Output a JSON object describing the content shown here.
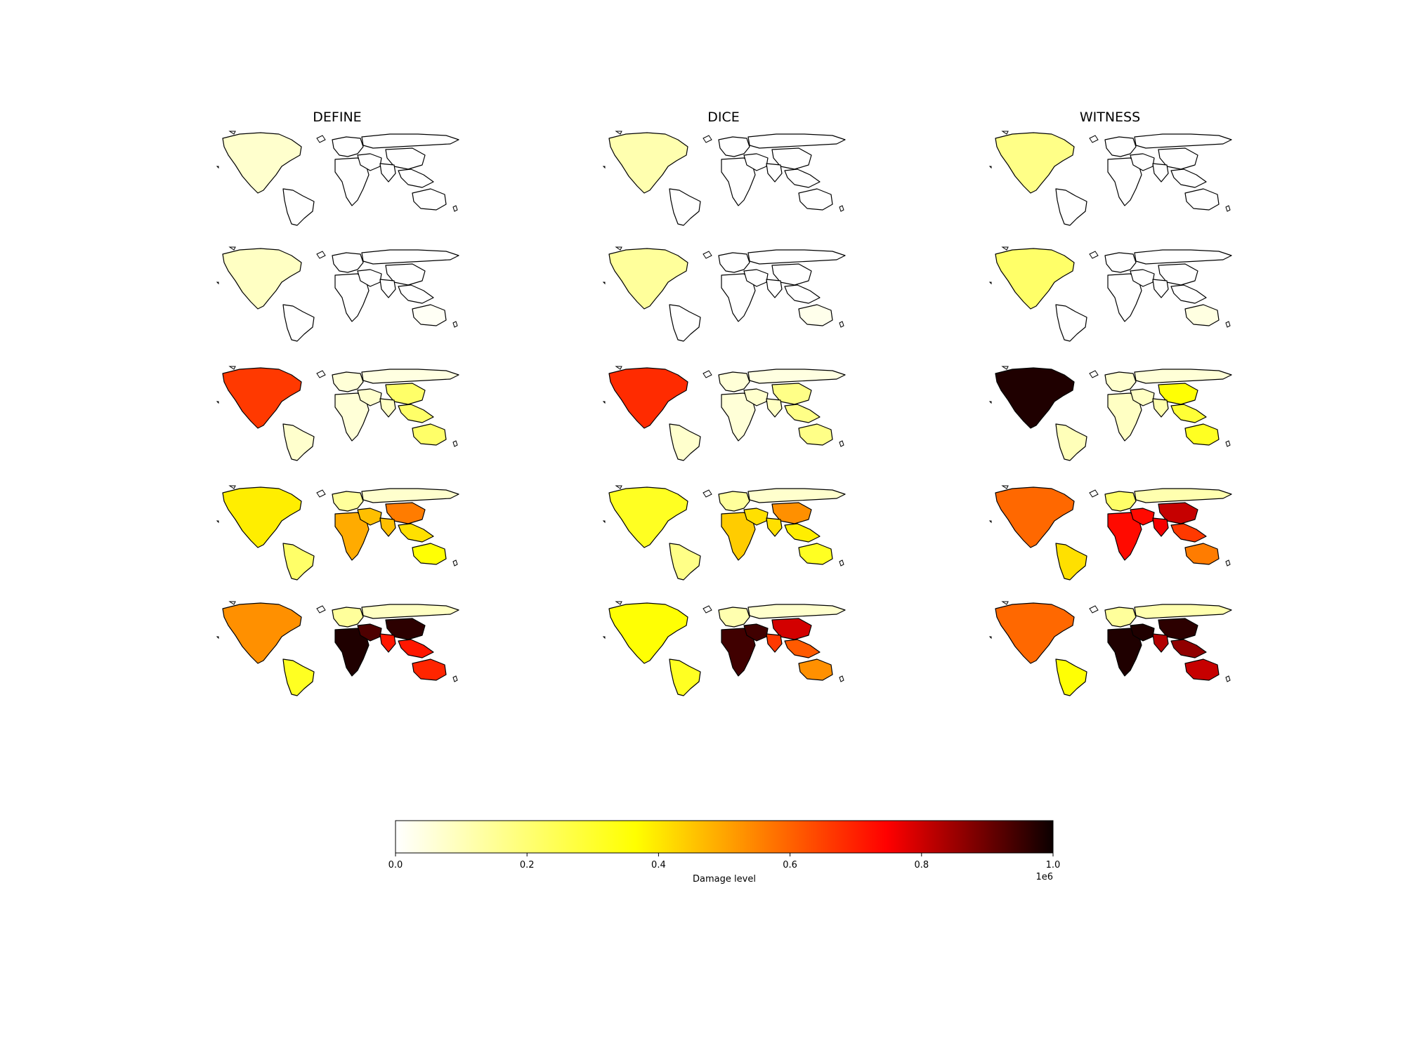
{
  "chart_data": {
    "type": "heatmap",
    "kind": "choropleth map grid",
    "columns": [
      "DEFINE",
      "DICE",
      "WITNESS"
    ],
    "row_count": 5,
    "colormap": "hot_r",
    "colorbar": {
      "label": "Damage level",
      "range": [
        0.0,
        1.0
      ],
      "ticks": [
        "0.0",
        "0.2",
        "0.4",
        "0.6",
        "0.8",
        "1.0"
      ],
      "offset_text": "1e6",
      "orientation": "horizontal",
      "placement": "bottom"
    },
    "regions": [
      "North America",
      "South America",
      "Europe",
      "Africa",
      "Russia",
      "Middle East",
      "China",
      "South Asia",
      "Southeast Asia",
      "Australia"
    ],
    "panels": [
      {
        "model": "DEFINE",
        "row": 1,
        "values": {
          "North America": 0.05,
          "South America": 0.0,
          "Europe": 0.0,
          "Africa": 0.0,
          "Russia": 0.0,
          "Middle East": 0.0,
          "China": 0.0,
          "South Asia": 0.0,
          "Southeast Asia": 0.0,
          "Australia": 0.0
        }
      },
      {
        "model": "DICE",
        "row": 1,
        "values": {
          "North America": 0.08,
          "South America": 0.0,
          "Europe": 0.0,
          "Africa": 0.0,
          "Russia": 0.0,
          "Middle East": 0.0,
          "China": 0.0,
          "South Asia": 0.0,
          "Southeast Asia": 0.0,
          "Australia": 0.0
        }
      },
      {
        "model": "WITNESS",
        "row": 1,
        "values": {
          "North America": 0.12,
          "South America": 0.0,
          "Europe": 0.0,
          "Africa": 0.0,
          "Russia": 0.0,
          "Middle East": 0.0,
          "China": 0.0,
          "South Asia": 0.0,
          "Southeast Asia": 0.0,
          "Australia": 0.0
        }
      },
      {
        "model": "DEFINE",
        "row": 2,
        "values": {
          "North America": 0.06,
          "South America": 0.0,
          "Europe": 0.0,
          "Africa": 0.0,
          "Russia": 0.0,
          "Middle East": 0.0,
          "China": 0.0,
          "South Asia": 0.0,
          "Southeast Asia": 0.0,
          "Australia": 0.01
        }
      },
      {
        "model": "DICE",
        "row": 2,
        "values": {
          "North America": 0.1,
          "South America": 0.0,
          "Europe": 0.0,
          "Africa": 0.0,
          "Russia": 0.0,
          "Middle East": 0.0,
          "China": 0.0,
          "South Asia": 0.0,
          "Southeast Asia": 0.0,
          "Australia": 0.02
        }
      },
      {
        "model": "WITNESS",
        "row": 2,
        "values": {
          "North America": 0.15,
          "South America": 0.0,
          "Europe": 0.0,
          "Africa": 0.0,
          "Russia": 0.0,
          "Middle East": 0.0,
          "China": 0.0,
          "South Asia": 0.0,
          "Southeast Asia": 0.0,
          "Australia": 0.03
        }
      },
      {
        "model": "DEFINE",
        "row": 3,
        "values": {
          "North America": 0.55,
          "South America": 0.05,
          "Europe": 0.04,
          "Africa": 0.04,
          "Russia": 0.03,
          "Middle East": 0.05,
          "China": 0.15,
          "South Asia": 0.06,
          "Southeast Asia": 0.15,
          "Australia": 0.15
        }
      },
      {
        "model": "DICE",
        "row": 3,
        "values": {
          "North America": 0.57,
          "South America": 0.05,
          "Europe": 0.04,
          "Africa": 0.04,
          "Russia": 0.03,
          "Middle East": 0.05,
          "China": 0.12,
          "South Asia": 0.06,
          "Southeast Asia": 0.12,
          "Australia": 0.12
        }
      },
      {
        "model": "WITNESS",
        "row": 3,
        "values": {
          "North America": 0.97,
          "South America": 0.07,
          "Europe": 0.05,
          "Africa": 0.06,
          "Russia": 0.04,
          "Middle East": 0.06,
          "China": 0.25,
          "South Asia": 0.08,
          "Southeast Asia": 0.2,
          "Australia": 0.22
        }
      },
      {
        "model": "DEFINE",
        "row": 4,
        "values": {
          "North America": 0.28,
          "South America": 0.15,
          "Europe": 0.1,
          "Africa": 0.38,
          "Russia": 0.05,
          "Middle East": 0.35,
          "China": 0.45,
          "South Asia": 0.35,
          "Southeast Asia": 0.3,
          "Australia": 0.25
        }
      },
      {
        "model": "DICE",
        "row": 4,
        "values": {
          "North America": 0.22,
          "South America": 0.12,
          "Europe": 0.1,
          "Africa": 0.33,
          "Russia": 0.05,
          "Middle East": 0.3,
          "China": 0.42,
          "South Asia": 0.3,
          "Southeast Asia": 0.28,
          "Australia": 0.22
        }
      },
      {
        "model": "WITNESS",
        "row": 4,
        "values": {
          "North America": 0.48,
          "South America": 0.3,
          "Europe": 0.15,
          "Africa": 0.62,
          "Russia": 0.08,
          "Middle East": 0.62,
          "China": 0.72,
          "South Asia": 0.65,
          "Southeast Asia": 0.55,
          "Australia": 0.45
        }
      },
      {
        "model": "DEFINE",
        "row": 5,
        "values": {
          "North America": 0.42,
          "South America": 0.22,
          "Europe": 0.1,
          "Africa": 0.97,
          "Russia": 0.06,
          "Middle East": 0.9,
          "China": 0.95,
          "South Asia": 0.6,
          "Southeast Asia": 0.6,
          "Australia": 0.58
        }
      },
      {
        "model": "DICE",
        "row": 5,
        "values": {
          "North America": 0.25,
          "South America": 0.22,
          "Europe": 0.08,
          "Africa": 0.92,
          "Russia": 0.05,
          "Middle East": 0.92,
          "China": 0.7,
          "South Asia": 0.55,
          "Southeast Asia": 0.5,
          "Australia": 0.42
        }
      },
      {
        "model": "WITNESS",
        "row": 5,
        "values": {
          "North America": 0.48,
          "South America": 0.25,
          "Europe": 0.1,
          "Africa": 0.97,
          "Russia": 0.08,
          "Middle East": 0.97,
          "China": 0.95,
          "South Asia": 0.75,
          "Southeast Asia": 0.8,
          "Australia": 0.72
        }
      }
    ]
  }
}
